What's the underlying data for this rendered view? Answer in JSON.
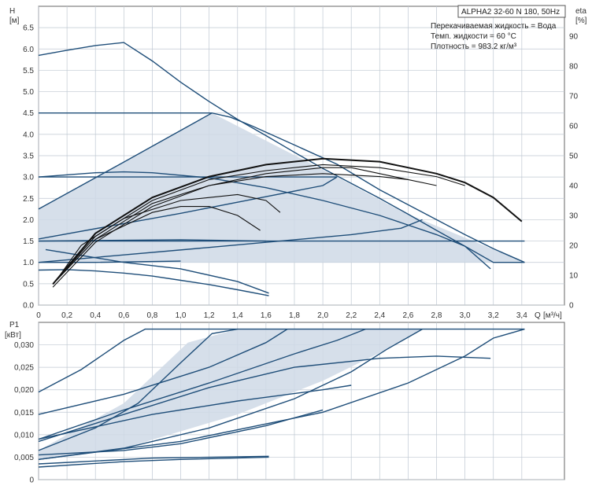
{
  "colors": {
    "curve": "#1f4e79",
    "eff": "#111111",
    "fill": "#cfd9e6",
    "grid": "#bfc8d2",
    "frame": "#666666"
  },
  "info": {
    "model": "ALPHA2 32-60 N 180, 50Hz",
    "liquid": "Перекачиваемая жидкость = Вода",
    "temp": "Темп. жидкости = 60 °C",
    "density": "Плотность = 983.2 кг/м³"
  },
  "chart_data": [
    {
      "type": "line",
      "panel": "head-efficiency",
      "ylabel": "H",
      "yunit": "[м]",
      "y2label": "eta",
      "y2unit": "[%]",
      "xlabel": "Q",
      "xunit": "[м³/ч]",
      "xlim": [
        0,
        3.7
      ],
      "ylim": [
        0,
        7
      ],
      "y2lim": [
        0,
        100
      ],
      "x_ticks": [
        "0",
        "0,2",
        "0,4",
        "0,6",
        "0,8",
        "1,0",
        "1,2",
        "1,4",
        "1,6",
        "1,8",
        "2,0",
        "2,2",
        "2,4",
        "2,6",
        "2,8",
        "3,0",
        "3,2",
        "3,4"
      ],
      "y_ticks": [
        "0.0",
        "0.5",
        "1.0",
        "1.5",
        "2.0",
        "2.5",
        "3.0",
        "3.5",
        "4.0",
        "4.5",
        "5.0",
        "5.5",
        "6.0",
        "6.5"
      ],
      "y2_ticks": [
        "0",
        "10",
        "20",
        "30",
        "40",
        "50",
        "60",
        "70",
        "80",
        "90"
      ],
      "grid": true,
      "operating_region": [
        [
          0,
          2.25
        ],
        [
          1.22,
          4.5
        ],
        [
          2.1,
          3.0
        ],
        [
          2.55,
          2.2
        ],
        [
          3.42,
          1.0
        ],
        [
          0,
          1.0
        ]
      ],
      "head_series": [
        {
          "points": [
            [
              0,
              5.85
            ],
            [
              0.2,
              5.97
            ],
            [
              0.4,
              6.08
            ],
            [
              0.6,
              6.15
            ],
            [
              0.8,
              5.72
            ],
            [
              1.0,
              5.22
            ],
            [
              1.2,
              4.77
            ],
            [
              1.4,
              4.35
            ],
            [
              1.6,
              3.97
            ],
            [
              1.8,
              3.58
            ],
            [
              2.0,
              3.2
            ],
            [
              2.2,
              2.85
            ],
            [
              2.4,
              2.5
            ],
            [
              2.6,
              2.13
            ],
            [
              2.8,
              1.75
            ],
            [
              3.0,
              1.38
            ],
            [
              3.2,
              1.0
            ],
            [
              3.42,
              1.0
            ]
          ]
        },
        {
          "points": [
            [
              0,
              4.5
            ],
            [
              1.22,
              4.5
            ]
          ]
        },
        {
          "points": [
            [
              0,
              3.0
            ],
            [
              0.4,
              3.1
            ],
            [
              0.6,
              3.12
            ],
            [
              0.8,
              3.1
            ],
            [
              1.2,
              2.98
            ],
            [
              1.6,
              2.75
            ],
            [
              2.0,
              2.45
            ],
            [
              2.4,
              2.1
            ],
            [
              2.8,
              1.65
            ],
            [
              3.0,
              1.38
            ],
            [
              3.18,
              0.85
            ]
          ]
        },
        {
          "points": [
            [
              0,
              3.0
            ],
            [
              2.1,
              3.0
            ]
          ]
        },
        {
          "points": [
            [
              0,
              1.5
            ],
            [
              3.42,
              1.5
            ]
          ]
        },
        {
          "points": [
            [
              0,
              1.0
            ],
            [
              0.4,
              1.0
            ],
            [
              1.0,
              1.03
            ]
          ]
        },
        {
          "points": [
            [
              0,
              0.82
            ],
            [
              0.2,
              0.83
            ],
            [
              0.4,
              0.8
            ],
            [
              0.6,
              0.75
            ],
            [
              0.8,
              0.68
            ],
            [
              1.0,
              0.58
            ],
            [
              1.2,
              0.48
            ],
            [
              1.4,
              0.36
            ],
            [
              1.62,
              0.22
            ]
          ]
        },
        {
          "points": [
            [
              0.05,
              1.3
            ],
            [
              0.6,
              1.0
            ],
            [
              1.0,
              0.85
            ],
            [
              1.4,
              0.55
            ],
            [
              1.62,
              0.28
            ]
          ]
        },
        {
          "points": [
            [
              0,
              2.25
            ],
            [
              0.6,
              3.35
            ],
            [
              1.22,
              4.5
            ],
            [
              1.35,
              4.4
            ],
            [
              1.5,
              4.2
            ],
            [
              1.8,
              3.75
            ],
            [
              2.1,
              3.3
            ],
            [
              2.4,
              2.7
            ],
            [
              2.6,
              2.35
            ],
            [
              2.8,
              2.0
            ],
            [
              3.0,
              1.65
            ],
            [
              3.2,
              1.32
            ],
            [
              3.42,
              1.0
            ]
          ]
        },
        {
          "points": [
            [
              0,
              1.55
            ],
            [
              1.0,
              2.15
            ],
            [
              2.0,
              2.8
            ],
            [
              2.1,
              3.0
            ]
          ]
        },
        {
          "points": [
            [
              0,
              1.0
            ],
            [
              1.2,
              1.35
            ],
            [
              2.2,
              1.65
            ],
            [
              2.55,
              1.8
            ],
            [
              2.7,
              2.0
            ]
          ]
        },
        {
          "points": [
            [
              0,
              1.5
            ],
            [
              1.0,
              1.53
            ],
            [
              1.6,
              1.5
            ]
          ]
        }
      ],
      "efficiency_series": [
        {
          "points": [
            [
              0.12,
              8
            ],
            [
              0.3,
              20
            ],
            [
              0.6,
              29
            ],
            [
              1.0,
              35
            ],
            [
              1.4,
              37
            ],
            [
              1.6,
              35
            ],
            [
              1.7,
              31
            ]
          ]
        },
        {
          "points": [
            [
              0.12,
              8
            ],
            [
              0.4,
              22
            ],
            [
              0.8,
              31
            ],
            [
              1.0,
              33
            ],
            [
              1.2,
              33
            ],
            [
              1.4,
              30
            ],
            [
              1.56,
              25
            ]
          ]
        },
        {
          "points": [
            [
              0.1,
              7
            ],
            [
              0.4,
              22
            ],
            [
              0.8,
              34
            ],
            [
              1.2,
              40
            ],
            [
              1.6,
              43
            ],
            [
              2.0,
              44
            ],
            [
              2.4,
              43
            ],
            [
              2.6,
              42
            ],
            [
              2.8,
              40
            ]
          ]
        },
        {
          "points": [
            [
              0.1,
              7
            ],
            [
              0.4,
              24
            ],
            [
              0.8,
              36
            ],
            [
              1.2,
              43
            ],
            [
              1.6,
              47
            ],
            [
              2.0,
              49
            ],
            [
              2.4,
              48
            ],
            [
              2.8,
              44
            ],
            [
              3.0,
              41
            ],
            [
              3.2,
              36
            ],
            [
              3.4,
              28
            ]
          ]
        },
        {
          "points": [
            [
              0.1,
              7
            ],
            [
              0.4,
              23
            ],
            [
              0.8,
              35
            ],
            [
              1.2,
              42
            ],
            [
              1.6,
              45
            ],
            [
              2.0,
              47
            ],
            [
              2.4,
              46
            ],
            [
              2.8,
              43
            ],
            [
              3.0,
              40
            ]
          ]
        },
        {
          "points": [
            [
              0.1,
              6
            ],
            [
              0.4,
              21
            ],
            [
              0.8,
              33
            ],
            [
              1.2,
              40
            ],
            [
              1.6,
              44
            ],
            [
              2.0,
              46
            ],
            [
              2.2,
              46
            ],
            [
              2.4,
              44
            ],
            [
              2.6,
              42
            ]
          ]
        }
      ]
    },
    {
      "type": "line",
      "panel": "power",
      "ylabel": "P1",
      "yunit": "[кВт]",
      "xlim": [
        0,
        3.7
      ],
      "ylim": [
        0,
        0.035
      ],
      "y_ticks": [
        "0",
        "0,005",
        "0,010",
        "0,015",
        "0,020",
        "0,025",
        "0,030"
      ],
      "grid": true,
      "operating_region": [
        [
          0,
          0.0065
        ],
        [
          0.6,
          0.017
        ],
        [
          1.05,
          0.0305
        ],
        [
          1.4,
          0.0335
        ],
        [
          2.7,
          0.0335
        ],
        [
          2.45,
          0.029
        ],
        [
          2.0,
          0.022
        ],
        [
          1.4,
          0.0145
        ],
        [
          0.6,
          0.007
        ],
        [
          0,
          0.0045
        ]
      ],
      "series": [
        {
          "points": [
            [
              0,
              0.0195
            ],
            [
              0.3,
              0.0245
            ],
            [
              0.6,
              0.031
            ],
            [
              0.75,
              0.0335
            ],
            [
              3.42,
              0.0335
            ]
          ]
        },
        {
          "points": [
            [
              0,
              0.0145
            ],
            [
              0.6,
              0.019
            ],
            [
              1.2,
              0.025
            ],
            [
              1.6,
              0.0305
            ],
            [
              1.75,
              0.0335
            ]
          ]
        },
        {
          "points": [
            [
              0,
              0.009
            ],
            [
              0.6,
              0.0155
            ],
            [
              1.2,
              0.0215
            ],
            [
              1.8,
              0.028
            ],
            [
              2.1,
              0.031
            ],
            [
              2.3,
              0.0335
            ]
          ]
        },
        {
          "points": [
            [
              0,
              0.0065
            ],
            [
              0.4,
              0.0115
            ],
            [
              0.7,
              0.017
            ],
            [
              1.0,
              0.026
            ],
            [
              1.22,
              0.0325
            ],
            [
              1.4,
              0.0335
            ]
          ]
        },
        {
          "points": [
            [
              0,
              0.0045
            ],
            [
              0.6,
              0.007
            ],
            [
              1.2,
              0.0115
            ],
            [
              1.8,
              0.018
            ],
            [
              2.2,
              0.024
            ],
            [
              2.45,
              0.029
            ],
            [
              2.7,
              0.0335
            ]
          ]
        },
        {
          "points": [
            [
              0,
              0.0045
            ],
            [
              1.0,
              0.0085
            ],
            [
              2.0,
              0.015
            ],
            [
              2.6,
              0.0215
            ],
            [
              3.0,
              0.0275
            ],
            [
              3.2,
              0.0315
            ],
            [
              3.42,
              0.0335
            ]
          ]
        },
        {
          "points": [
            [
              0,
              0.0085
            ],
            [
              0.6,
              0.0145
            ],
            [
              1.2,
              0.0205
            ],
            [
              1.8,
              0.025
            ],
            [
              2.4,
              0.027
            ],
            [
              2.8,
              0.0275
            ],
            [
              3.18,
              0.027
            ]
          ]
        },
        {
          "points": [
            [
              0,
              0.0028
            ],
            [
              0.6,
              0.004
            ],
            [
              1.0,
              0.0045
            ],
            [
              1.62,
              0.005
            ]
          ]
        },
        {
          "points": [
            [
              0,
              0.0035
            ],
            [
              0.8,
              0.0048
            ],
            [
              1.62,
              0.0052
            ]
          ]
        },
        {
          "points": [
            [
              0,
              0.009
            ],
            [
              0.8,
              0.0145
            ],
            [
              1.4,
              0.0175
            ],
            [
              2.0,
              0.02
            ],
            [
              2.2,
              0.021
            ]
          ]
        },
        {
          "points": [
            [
              0,
              0.0055
            ],
            [
              0.6,
              0.0065
            ],
            [
              1.0,
              0.008
            ],
            [
              1.6,
              0.012
            ],
            [
              2.0,
              0.0155
            ]
          ]
        }
      ]
    }
  ]
}
